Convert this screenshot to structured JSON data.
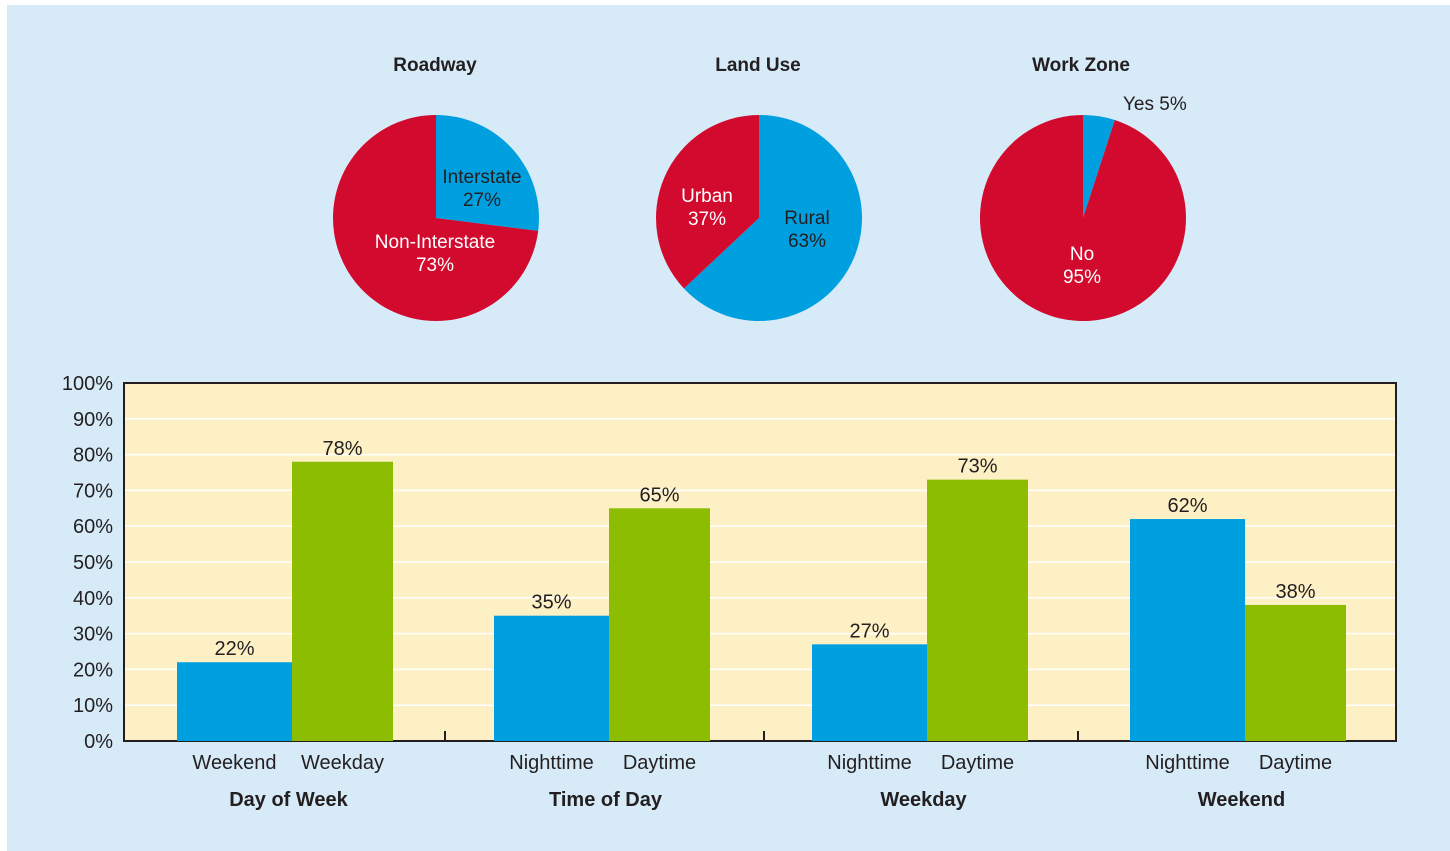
{
  "chart_data": [
    {
      "type": "pie",
      "title": "Roadway",
      "slices": [
        {
          "label": "Interstate",
          "value": 27,
          "value_label": "27%",
          "color": "#009fdf"
        },
        {
          "label": "Non-Interstate",
          "value": 73,
          "value_label": "73%",
          "color": "#d20a2e"
        }
      ]
    },
    {
      "type": "pie",
      "title": "Land Use",
      "slices": [
        {
          "label": "Rural",
          "value": 63,
          "value_label": "63%",
          "color": "#009fdf"
        },
        {
          "label": "Urban",
          "value": 37,
          "value_label": "37%",
          "color": "#d20a2e"
        }
      ]
    },
    {
      "type": "pie",
      "title": "Work Zone",
      "slices": [
        {
          "label": "Yes",
          "value": 5,
          "value_label": "5%",
          "color": "#009fdf"
        },
        {
          "label": "No",
          "value": 95,
          "value_label": "95%",
          "color": "#d20a2e"
        }
      ]
    },
    {
      "type": "bar",
      "ylim": [
        0,
        100
      ],
      "yticks": [
        "0%",
        "10%",
        "20%",
        "30%",
        "40%",
        "50%",
        "60%",
        "70%",
        "80%",
        "90%",
        "100%"
      ],
      "grid": true,
      "groups": [
        {
          "name": "Day of Week",
          "bars": [
            {
              "label": "Weekend",
              "value": 22,
              "value_label": "22%",
              "color": "#009fdf"
            },
            {
              "label": "Weekday",
              "value": 78,
              "value_label": "78%",
              "color": "#8cbd00"
            }
          ]
        },
        {
          "name": "Time of Day",
          "bars": [
            {
              "label": "Nighttime",
              "value": 35,
              "value_label": "35%",
              "color": "#009fdf"
            },
            {
              "label": "Daytime",
              "value": 65,
              "value_label": "65%",
              "color": "#8cbd00"
            }
          ]
        },
        {
          "name": "Weekday",
          "bars": [
            {
              "label": "Nighttime",
              "value": 27,
              "value_label": "27%",
              "color": "#009fdf"
            },
            {
              "label": "Daytime",
              "value": 73,
              "value_label": "73%",
              "color": "#8cbd00"
            }
          ]
        },
        {
          "name": "Weekend",
          "bars": [
            {
              "label": "Nighttime",
              "value": 62,
              "value_label": "62%",
              "color": "#009fdf"
            },
            {
              "label": "Daytime",
              "value": 38,
              "value_label": "38%",
              "color": "#8cbd00"
            }
          ]
        }
      ]
    }
  ],
  "colors": {
    "panel_background": "#d6eaf8",
    "plot_background": "#fdf0c4",
    "gridline": "#ffffff",
    "axis": "#231f20",
    "pie_label_on_blue": "#231f20",
    "pie_label_on_red": "#ffffff"
  }
}
